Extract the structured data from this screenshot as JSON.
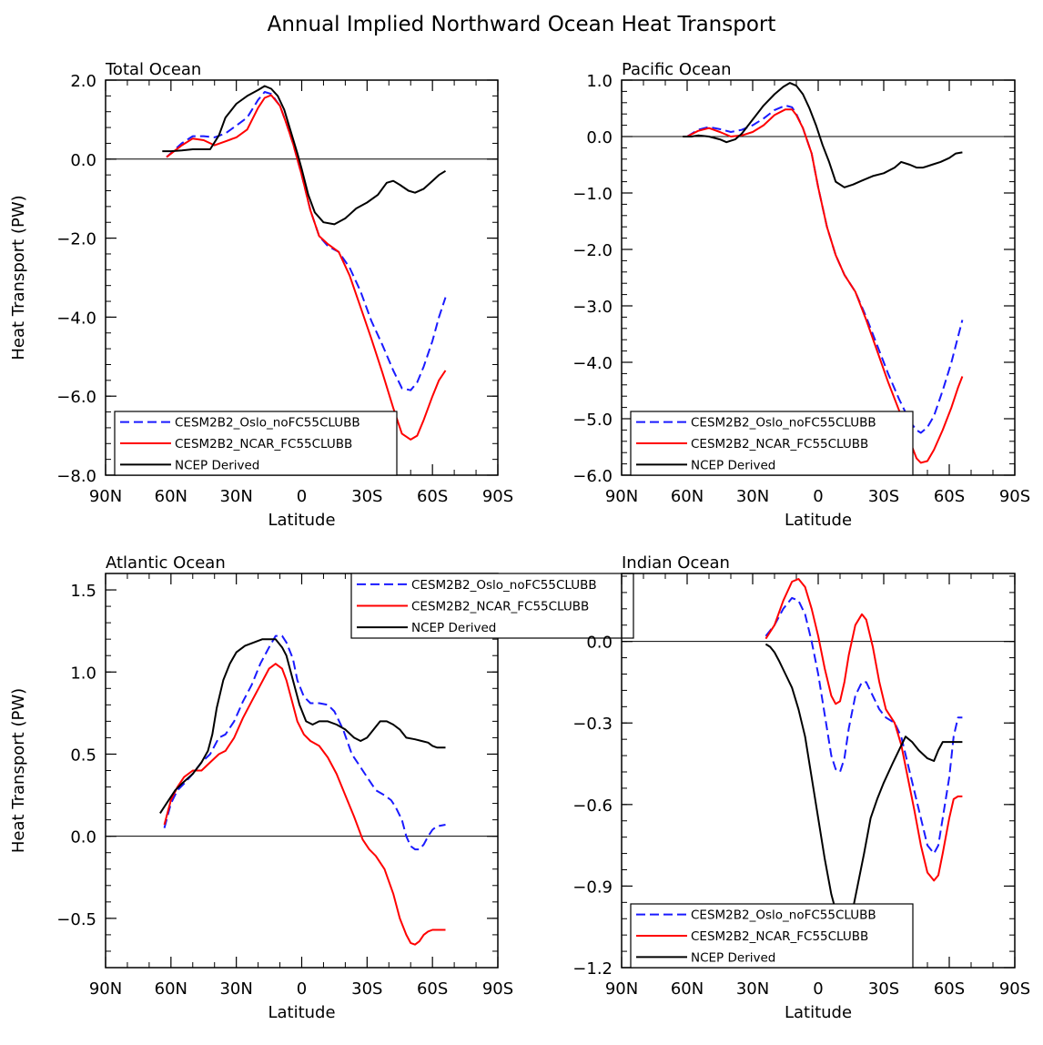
{
  "title": "Annual Implied Northward Ocean Heat Transport",
  "colors": {
    "oslo": "#1a1aff",
    "ncar": "#ff0000",
    "ncep": "#000000",
    "axis": "#000000"
  },
  "chart_data": [
    {
      "type": "line",
      "title": "Total Ocean",
      "xlabel": "Latitude",
      "ylabel": "Heat Transport (PW)",
      "xlim": [
        90,
        -90
      ],
      "ylim": [
        -8,
        2
      ],
      "xticks": [
        90,
        60,
        30,
        0,
        -30,
        -60,
        -90
      ],
      "xtick_labels": [
        "90N",
        "60N",
        "30N",
        "0",
        "30S",
        "60S",
        "90S"
      ],
      "yticks": [
        2,
        0,
        -2,
        -4,
        -6,
        -8
      ],
      "ytick_labels": [
        "2.0",
        "0.0",
        "−2.0",
        "−4.0",
        "−6.0",
        "−8.0"
      ],
      "legend": {
        "position": "bottom-left"
      },
      "series": [
        {
          "name": "CESM2B2_Oslo_noFC55CLUBB",
          "style": "dashed",
          "color_key": "oslo",
          "x": [
            62,
            55,
            50,
            45,
            40,
            35,
            30,
            25,
            20,
            17,
            14,
            10,
            7,
            4,
            0,
            -4,
            -8,
            -12,
            -17,
            -22,
            -27,
            -32,
            -37,
            -42,
            -46,
            -50,
            -53,
            -56,
            -60,
            -63,
            -66
          ],
          "y": [
            0.05,
            0.4,
            0.58,
            0.58,
            0.55,
            0.65,
            0.85,
            1.05,
            1.5,
            1.7,
            1.65,
            1.35,
            0.9,
            0.4,
            -0.4,
            -1.3,
            -1.95,
            -2.2,
            -2.35,
            -2.75,
            -3.35,
            -4.1,
            -4.7,
            -5.35,
            -5.8,
            -5.85,
            -5.65,
            -5.25,
            -4.6,
            -4.0,
            -3.5
          ]
        },
        {
          "name": "CESM2B2_NCAR_FC55CLUBB",
          "style": "solid",
          "color_key": "ncar",
          "x": [
            62,
            55,
            50,
            45,
            40,
            35,
            30,
            25,
            20,
            17,
            14,
            10,
            7,
            4,
            0,
            -4,
            -8,
            -12,
            -17,
            -22,
            -27,
            -32,
            -37,
            -42,
            -46,
            -50,
            -53,
            -56,
            -60,
            -63,
            -66
          ],
          "y": [
            0.05,
            0.35,
            0.52,
            0.48,
            0.35,
            0.45,
            0.55,
            0.75,
            1.3,
            1.55,
            1.62,
            1.35,
            0.9,
            0.4,
            -0.4,
            -1.3,
            -1.95,
            -2.15,
            -2.35,
            -2.95,
            -3.75,
            -4.55,
            -5.4,
            -6.3,
            -6.95,
            -7.1,
            -7.0,
            -6.6,
            -6.0,
            -5.6,
            -5.35
          ]
        },
        {
          "name": "NCEP Derived",
          "style": "solid",
          "color_key": "ncep",
          "x": [
            64,
            60,
            55,
            50,
            45,
            42,
            38,
            35,
            30,
            25,
            20,
            17,
            14,
            11,
            8,
            5,
            2,
            0,
            -3,
            -6,
            -10,
            -15,
            -20,
            -25,
            -30,
            -35,
            -39,
            -42,
            -45,
            -49,
            -52,
            -56,
            -60,
            -63,
            -66
          ],
          "y": [
            0.2,
            0.2,
            0.22,
            0.25,
            0.25,
            0.25,
            0.6,
            1.05,
            1.4,
            1.6,
            1.75,
            1.85,
            1.78,
            1.6,
            1.25,
            0.7,
            0.15,
            -0.25,
            -0.9,
            -1.35,
            -1.6,
            -1.65,
            -1.5,
            -1.25,
            -1.1,
            -0.9,
            -0.6,
            -0.55,
            -0.65,
            -0.8,
            -0.85,
            -0.75,
            -0.55,
            -0.4,
            -0.3
          ]
        }
      ]
    },
    {
      "type": "line",
      "title": "Pacific Ocean",
      "xlabel": "Latitude",
      "ylabel": "",
      "xlim": [
        90,
        -90
      ],
      "ylim": [
        -6,
        1
      ],
      "xticks": [
        90,
        60,
        30,
        0,
        -30,
        -60,
        -90
      ],
      "xtick_labels": [
        "90N",
        "60N",
        "30N",
        "0",
        "30S",
        "60S",
        "90S"
      ],
      "yticks": [
        1,
        0,
        -1,
        -2,
        -3,
        -4,
        -5,
        -6
      ],
      "ytick_labels": [
        "1.0",
        "0.0",
        "−1.0",
        "−2.0",
        "−3.0",
        "−4.0",
        "−5.0",
        "−6.0"
      ],
      "legend": {
        "position": "bottom-left"
      },
      "series": [
        {
          "name": "CESM2B2_Oslo_noFC55CLUBB",
          "style": "dashed",
          "color_key": "oslo",
          "x": [
            60,
            55,
            50,
            45,
            40,
            35,
            30,
            25,
            20,
            15,
            12,
            10,
            7,
            3,
            0,
            -4,
            -8,
            -12,
            -17,
            -22,
            -27,
            -32,
            -37,
            -42,
            -45,
            -47,
            -50,
            -53,
            -57,
            -61,
            -64,
            -66
          ],
          "y": [
            0.0,
            0.12,
            0.17,
            0.13,
            0.08,
            0.12,
            0.2,
            0.32,
            0.47,
            0.55,
            0.52,
            0.4,
            0.15,
            -0.3,
            -0.9,
            -1.6,
            -2.1,
            -2.45,
            -2.75,
            -3.2,
            -3.7,
            -4.2,
            -4.65,
            -5.05,
            -5.2,
            -5.25,
            -5.15,
            -4.95,
            -4.5,
            -4.0,
            -3.55,
            -3.25
          ]
        },
        {
          "name": "CESM2B2_NCAR_FC55CLUBB",
          "style": "solid",
          "color_key": "ncar",
          "x": [
            60,
            55,
            50,
            45,
            40,
            35,
            30,
            25,
            20,
            15,
            12,
            10,
            7,
            3,
            0,
            -4,
            -8,
            -12,
            -17,
            -22,
            -27,
            -32,
            -37,
            -42,
            -45,
            -47,
            -50,
            -53,
            -57,
            -61,
            -64,
            -66
          ],
          "y": [
            0.0,
            0.1,
            0.15,
            0.08,
            0.0,
            0.02,
            0.08,
            0.2,
            0.38,
            0.48,
            0.48,
            0.38,
            0.15,
            -0.3,
            -0.9,
            -1.6,
            -2.1,
            -2.45,
            -2.75,
            -3.25,
            -3.8,
            -4.35,
            -4.85,
            -5.4,
            -5.7,
            -5.78,
            -5.75,
            -5.55,
            -5.2,
            -4.8,
            -4.45,
            -4.25
          ]
        },
        {
          "name": "NCEP Derived",
          "style": "solid",
          "color_key": "ncep",
          "x": [
            62,
            58,
            55,
            50,
            45,
            42,
            38,
            35,
            30,
            25,
            20,
            16,
            13,
            10,
            7,
            4,
            1,
            -2,
            -5,
            -8,
            -12,
            -16,
            -20,
            -25,
            -30,
            -35,
            -38,
            -42,
            -45,
            -48,
            -52,
            -56,
            -60,
            -63,
            -66
          ],
          "y": [
            0.0,
            0.0,
            0.02,
            0.0,
            -0.05,
            -0.1,
            -0.05,
            0.05,
            0.3,
            0.55,
            0.75,
            0.88,
            0.95,
            0.9,
            0.75,
            0.5,
            0.2,
            -0.15,
            -0.45,
            -0.8,
            -0.9,
            -0.85,
            -0.78,
            -0.7,
            -0.65,
            -0.55,
            -0.45,
            -0.5,
            -0.55,
            -0.55,
            -0.5,
            -0.45,
            -0.38,
            -0.3,
            -0.28
          ]
        }
      ]
    },
    {
      "type": "line",
      "title": "Atlantic Ocean",
      "xlabel": "Latitude",
      "ylabel": "Heat Transport (PW)",
      "xlim": [
        90,
        -90
      ],
      "ylim": [
        -0.8,
        1.6
      ],
      "xticks": [
        90,
        60,
        30,
        0,
        -30,
        -60,
        -90
      ],
      "xtick_labels": [
        "90N",
        "60N",
        "30N",
        "0",
        "30S",
        "60S",
        "90S"
      ],
      "yticks": [
        1.5,
        1.0,
        0.5,
        0.0,
        -0.5
      ],
      "ytick_labels": [
        "1.5",
        "1.0",
        "0.5",
        "0.0",
        "−0.5"
      ],
      "legend": {
        "position": "top-center"
      },
      "series": [
        {
          "name": "CESM2B2_Oslo_noFC55CLUBB",
          "style": "dashed",
          "color_key": "oslo",
          "x": [
            63,
            60,
            57,
            54,
            50,
            46,
            42,
            38,
            35,
            31,
            27,
            23,
            19,
            15,
            12,
            9,
            7,
            4,
            2,
            -1,
            -4,
            -8,
            -12,
            -15,
            -19,
            -23,
            -27,
            -31,
            -34,
            -38,
            -41,
            -43,
            -46,
            -48,
            -50,
            -52,
            -54,
            -56,
            -58,
            -60,
            -62,
            -66
          ],
          "y": [
            0.05,
            0.2,
            0.28,
            0.32,
            0.38,
            0.45,
            0.5,
            0.6,
            0.62,
            0.7,
            0.82,
            0.92,
            1.05,
            1.15,
            1.22,
            1.22,
            1.18,
            1.08,
            0.95,
            0.85,
            0.81,
            0.81,
            0.8,
            0.76,
            0.65,
            0.5,
            0.42,
            0.34,
            0.28,
            0.25,
            0.22,
            0.18,
            0.1,
            0.0,
            -0.06,
            -0.08,
            -0.08,
            -0.05,
            0.0,
            0.04,
            0.06,
            0.07
          ]
        },
        {
          "name": "CESM2B2_NCAR_FC55CLUBB",
          "style": "solid",
          "color_key": "ncar",
          "x": [
            63,
            60,
            57,
            54,
            50,
            46,
            42,
            38,
            35,
            31,
            27,
            23,
            19,
            15,
            12,
            9,
            7,
            4,
            2,
            -1,
            -4,
            -8,
            -12,
            -16,
            -20,
            -24,
            -28,
            -31,
            -34,
            -38,
            -42,
            -45,
            -48,
            -50,
            -52,
            -54,
            -56,
            -58,
            -60,
            -62,
            -66
          ],
          "y": [
            0.07,
            0.22,
            0.3,
            0.36,
            0.4,
            0.4,
            0.45,
            0.5,
            0.52,
            0.6,
            0.72,
            0.82,
            0.92,
            1.02,
            1.05,
            1.02,
            0.95,
            0.8,
            0.7,
            0.62,
            0.58,
            0.55,
            0.48,
            0.38,
            0.25,
            0.12,
            -0.02,
            -0.08,
            -0.12,
            -0.2,
            -0.35,
            -0.5,
            -0.6,
            -0.65,
            -0.66,
            -0.64,
            -0.6,
            -0.58,
            -0.57,
            -0.57,
            -0.57
          ]
        },
        {
          "name": "NCEP Derived",
          "style": "solid",
          "color_key": "ncep",
          "x": [
            65,
            62,
            58,
            55,
            50,
            46,
            43,
            41,
            39,
            36,
            33,
            30,
            26,
            22,
            18,
            15,
            12,
            9,
            7,
            4,
            1,
            -2,
            -5,
            -8,
            -12,
            -16,
            -20,
            -24,
            -27,
            -30,
            -33,
            -36,
            -39,
            -42,
            -45,
            -48,
            -52,
            -55,
            -58,
            -60,
            -62,
            -66
          ],
          "y": [
            0.14,
            0.2,
            0.28,
            0.32,
            0.38,
            0.45,
            0.52,
            0.62,
            0.78,
            0.95,
            1.05,
            1.12,
            1.16,
            1.18,
            1.2,
            1.2,
            1.2,
            1.15,
            1.1,
            0.95,
            0.8,
            0.7,
            0.68,
            0.7,
            0.7,
            0.68,
            0.65,
            0.6,
            0.58,
            0.6,
            0.65,
            0.7,
            0.7,
            0.68,
            0.65,
            0.6,
            0.59,
            0.58,
            0.57,
            0.55,
            0.54,
            0.54
          ]
        }
      ]
    },
    {
      "type": "line",
      "title": "Indian Ocean",
      "xlabel": "Latitude",
      "ylabel": "",
      "xlim": [
        90,
        -90
      ],
      "ylim": [
        -1.2,
        0.25
      ],
      "xticks": [
        90,
        60,
        30,
        0,
        -30,
        -60,
        -90
      ],
      "xtick_labels": [
        "90N",
        "60N",
        "30N",
        "0",
        "30S",
        "60S",
        "90S"
      ],
      "yticks": [
        0.0,
        -0.3,
        -0.6,
        -0.9,
        -1.2
      ],
      "ytick_labels": [
        "0.0",
        "−0.3",
        "−0.6",
        "−0.9",
        "−1.2"
      ],
      "legend": {
        "position": "bottom-left"
      },
      "series": [
        {
          "name": "CESM2B2_Oslo_noFC55CLUBB",
          "style": "dashed",
          "color_key": "oslo",
          "x": [
            24,
            20,
            16,
            12,
            9,
            6,
            3,
            0,
            -3,
            -6,
            -8,
            -10,
            -12,
            -14,
            -17,
            -20,
            -22,
            -25,
            -28,
            -31,
            -35,
            -38,
            -41,
            -44,
            -47,
            -50,
            -53,
            -55,
            -57,
            -60,
            -62,
            -64,
            -66
          ],
          "y": [
            0.02,
            0.06,
            0.12,
            0.16,
            0.15,
            0.1,
            0.0,
            -0.12,
            -0.27,
            -0.42,
            -0.47,
            -0.48,
            -0.43,
            -0.32,
            -0.2,
            -0.15,
            -0.15,
            -0.2,
            -0.25,
            -0.28,
            -0.3,
            -0.35,
            -0.45,
            -0.55,
            -0.65,
            -0.75,
            -0.78,
            -0.75,
            -0.65,
            -0.5,
            -0.35,
            -0.28,
            -0.28
          ]
        },
        {
          "name": "CESM2B2_NCAR_FC55CLUBB",
          "style": "solid",
          "color_key": "ncar",
          "x": [
            24,
            20,
            16,
            12,
            9,
            6,
            3,
            0,
            -3,
            -6,
            -8,
            -10,
            -12,
            -14,
            -17,
            -20,
            -22,
            -25,
            -28,
            -31,
            -35,
            -38,
            -41,
            -44,
            -47,
            -50,
            -53,
            -55,
            -57,
            -60,
            -62,
            -64,
            -66
          ],
          "y": [
            0.01,
            0.06,
            0.15,
            0.22,
            0.23,
            0.2,
            0.12,
            0.02,
            -0.1,
            -0.2,
            -0.23,
            -0.22,
            -0.15,
            -0.05,
            0.06,
            0.1,
            0.08,
            -0.02,
            -0.15,
            -0.25,
            -0.3,
            -0.38,
            -0.5,
            -0.62,
            -0.75,
            -0.85,
            -0.88,
            -0.86,
            -0.78,
            -0.65,
            -0.58,
            -0.57,
            -0.57
          ]
        },
        {
          "name": "NCEP Derived",
          "style": "solid",
          "color_key": "ncep",
          "x": [
            24,
            22,
            20,
            18,
            15,
            12,
            9,
            6,
            3,
            0,
            -3,
            -6,
            -9,
            -12,
            -15,
            -18,
            -21,
            -24,
            -27,
            -30,
            -34,
            -37,
            -40,
            -43,
            -46,
            -50,
            -53,
            -55,
            -57,
            -60,
            -62,
            -64,
            -66
          ],
          "y": [
            -0.01,
            -0.02,
            -0.04,
            -0.07,
            -0.12,
            -0.17,
            -0.25,
            -0.35,
            -0.5,
            -0.65,
            -0.8,
            -0.93,
            -1.02,
            -1.05,
            -1.02,
            -0.9,
            -0.78,
            -0.65,
            -0.58,
            -0.52,
            -0.45,
            -0.4,
            -0.35,
            -0.37,
            -0.4,
            -0.43,
            -0.44,
            -0.4,
            -0.37,
            -0.37,
            -0.37,
            -0.37,
            -0.37
          ]
        }
      ]
    }
  ]
}
